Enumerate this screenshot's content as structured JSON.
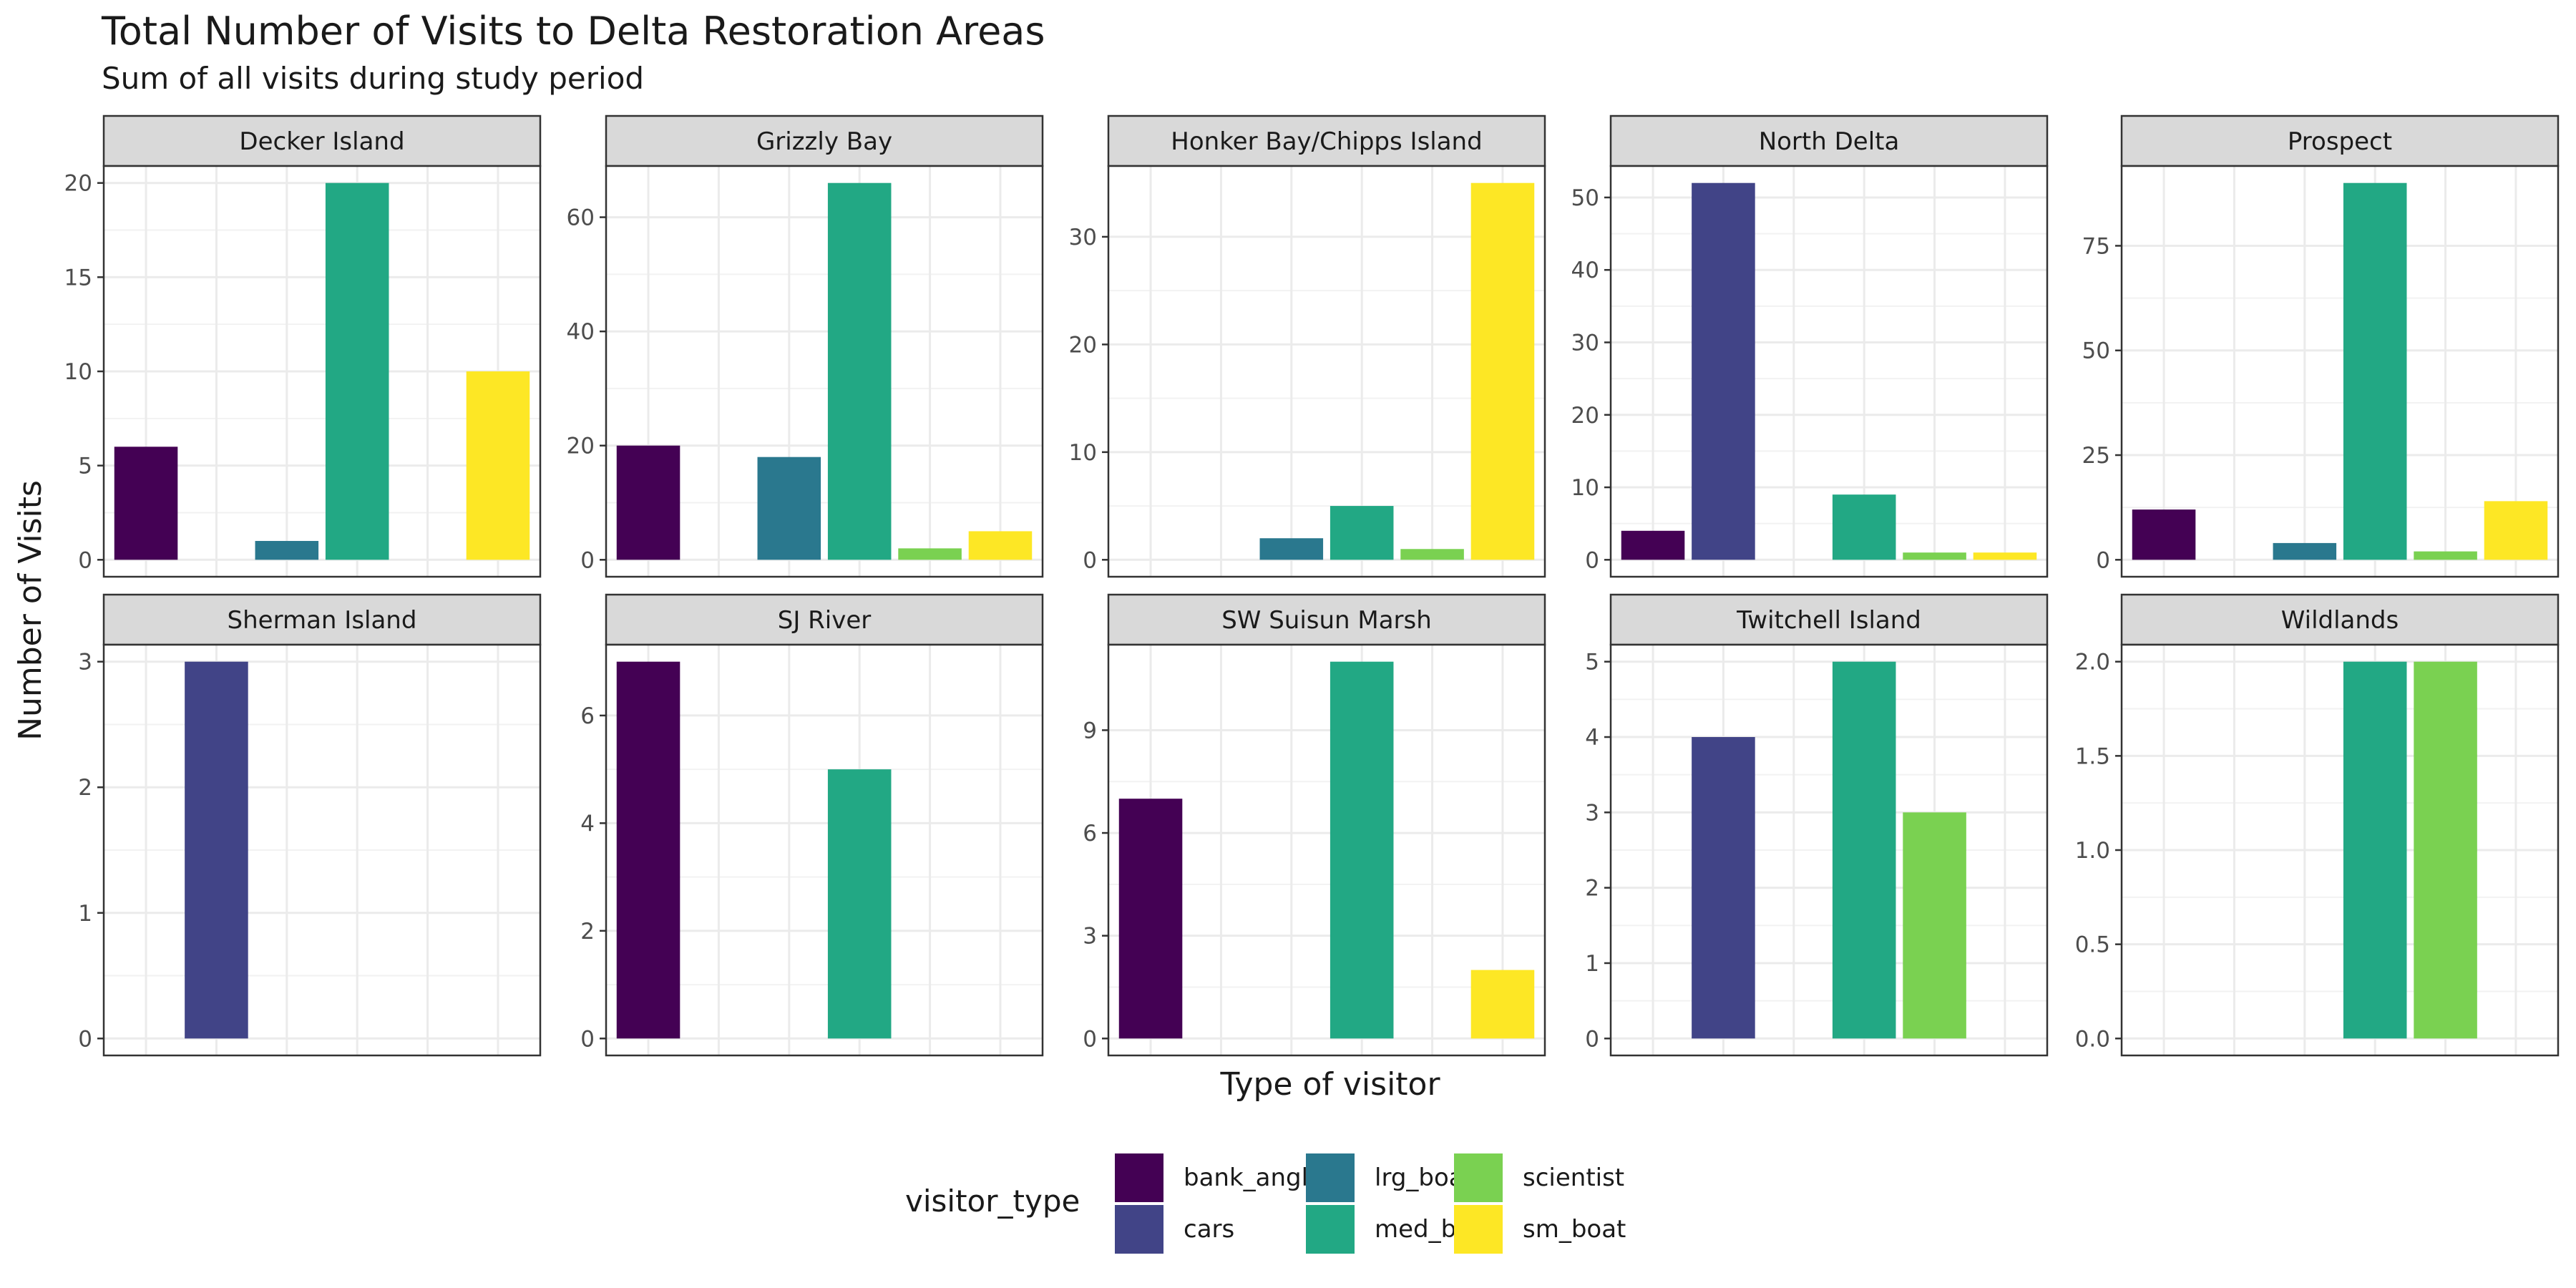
{
  "title": "Total Number of Visits to Delta Restoration Areas",
  "subtitle": "Sum of all visits during study period",
  "chart_data": {
    "type": "bar",
    "title": "Total Number of Visits to Delta Restoration Areas",
    "subtitle": "Sum of all visits during study period",
    "xlabel": "Type of visitor",
    "ylabel": "Number of Visits",
    "legend_title": "visitor_type",
    "legend_position": "bottom",
    "grid": true,
    "categories": [
      "bank_angler",
      "cars",
      "lrg_boat",
      "med_boat",
      "scientist",
      "sm_boat"
    ],
    "colors": {
      "bank_angler": "#440154",
      "cars": "#414487",
      "lrg_boat": "#2A788E",
      "med_boat": "#22A884",
      "scientist": "#7AD151",
      "sm_boat": "#FDE725"
    },
    "facets": [
      {
        "name": "Decker Island",
        "ylim": [
          0,
          20
        ],
        "yticks": [
          0,
          5,
          10,
          15,
          20
        ],
        "ytick_labels": [
          "0",
          "5",
          "10",
          "15",
          "20"
        ],
        "values": {
          "bank_angler": 6,
          "lrg_boat": 1,
          "med_boat": 20,
          "sm_boat": 10
        }
      },
      {
        "name": "Grizzly Bay",
        "ylim": [
          0,
          66
        ],
        "yticks": [
          0,
          20,
          40,
          60
        ],
        "ytick_labels": [
          "0",
          "20",
          "40",
          "60"
        ],
        "values": {
          "bank_angler": 20,
          "lrg_boat": 18,
          "med_boat": 66,
          "scientist": 2,
          "sm_boat": 5
        }
      },
      {
        "name": "Honker Bay/Chipps Island",
        "ylim": [
          0,
          35
        ],
        "yticks": [
          0,
          10,
          20,
          30
        ],
        "ytick_labels": [
          "0",
          "10",
          "20",
          "30"
        ],
        "values": {
          "lrg_boat": 2,
          "med_boat": 5,
          "scientist": 1,
          "sm_boat": 35
        }
      },
      {
        "name": "North Delta",
        "ylim": [
          0,
          52
        ],
        "yticks": [
          0,
          10,
          20,
          30,
          40,
          50
        ],
        "ytick_labels": [
          "0",
          "10",
          "20",
          "30",
          "40",
          "50"
        ],
        "values": {
          "bank_angler": 4,
          "cars": 52,
          "med_boat": 9,
          "scientist": 1,
          "sm_boat": 1
        }
      },
      {
        "name": "Prospect",
        "ylim": [
          0,
          90
        ],
        "yticks": [
          0,
          25,
          50,
          75
        ],
        "ytick_labels": [
          "0",
          "25",
          "50",
          "75"
        ],
        "values": {
          "bank_angler": 12,
          "lrg_boat": 4,
          "med_boat": 90,
          "scientist": 2,
          "sm_boat": 14
        }
      },
      {
        "name": "Sherman Island",
        "ylim": [
          0,
          3
        ],
        "yticks": [
          0,
          1,
          2,
          3
        ],
        "ytick_labels": [
          "0",
          "1",
          "2",
          "3"
        ],
        "values": {
          "cars": 3
        }
      },
      {
        "name": "SJ River",
        "ylim": [
          0,
          7
        ],
        "yticks": [
          0,
          2,
          4,
          6
        ],
        "ytick_labels": [
          "0",
          "2",
          "4",
          "6"
        ],
        "values": {
          "bank_angler": 7,
          "med_boat": 5
        }
      },
      {
        "name": "SW Suisun Marsh",
        "ylim": [
          0,
          11
        ],
        "yticks": [
          0,
          3,
          6,
          9
        ],
        "ytick_labels": [
          "0",
          "3",
          "6",
          "9"
        ],
        "values": {
          "bank_angler": 7,
          "med_boat": 11,
          "sm_boat": 2
        }
      },
      {
        "name": "Twitchell Island",
        "ylim": [
          0,
          5
        ],
        "yticks": [
          0,
          1,
          2,
          3,
          4,
          5
        ],
        "ytick_labels": [
          "0",
          "1",
          "2",
          "3",
          "4",
          "5"
        ],
        "values": {
          "cars": 4,
          "med_boat": 5,
          "scientist": 3
        }
      },
      {
        "name": "Wildlands",
        "ylim": [
          0,
          2
        ],
        "yticks": [
          0,
          0.5,
          1,
          1.5,
          2
        ],
        "ytick_labels": [
          "0.0",
          "0.5",
          "1.0",
          "1.5",
          "2.0"
        ],
        "values": {
          "med_boat": 2,
          "scientist": 2
        }
      }
    ]
  }
}
